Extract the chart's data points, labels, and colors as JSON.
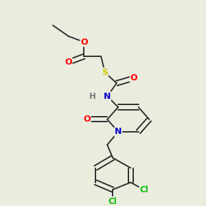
{
  "background_color": "#eaecde",
  "bond_color": "#2d2d2d",
  "bond_width": 1.4,
  "atom_colors": {
    "O": "#ff0000",
    "N": "#0000cc",
    "S": "#cccc00",
    "Cl": "#00bb00",
    "H": "#777777",
    "C": "#2d2d2d"
  },
  "figsize": [
    3.0,
    3.0
  ],
  "dpi": 100,
  "xlim": [
    0.0,
    1.0
  ],
  "ylim": [
    0.0,
    1.0
  ]
}
